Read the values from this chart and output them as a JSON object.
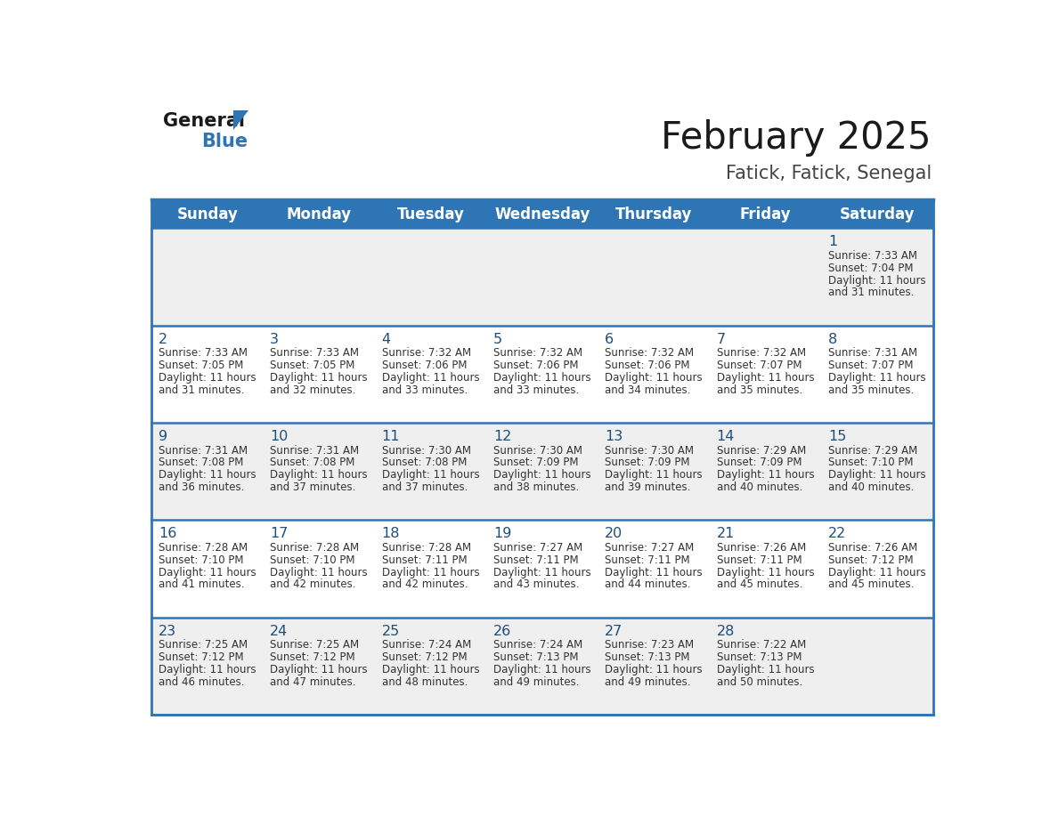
{
  "title": "February 2025",
  "subtitle": "Fatick, Fatick, Senegal",
  "header_bg_color": "#2E75B6",
  "header_text_color": "#FFFFFF",
  "day_names": [
    "Sunday",
    "Monday",
    "Tuesday",
    "Wednesday",
    "Thursday",
    "Friday",
    "Saturday"
  ],
  "cell_bg_color": "#EFEFEF",
  "cell_bg_color2": "#FFFFFF",
  "title_color": "#1A1A1A",
  "subtitle_color": "#444444",
  "day_num_color": "#1F4E79",
  "cell_text_color": "#333333",
  "border_color": "#2E75B6",
  "logo_text_color": "#1A1A1A",
  "logo_blue_color": "#2E75B6",
  "calendar": [
    [
      null,
      null,
      null,
      null,
      null,
      null,
      {
        "day": 1,
        "sunrise": "7:33 AM",
        "sunset": "7:04 PM",
        "daylight_h": "11 hours",
        "daylight_m": "and 31 minutes."
      }
    ],
    [
      {
        "day": 2,
        "sunrise": "7:33 AM",
        "sunset": "7:05 PM",
        "daylight_h": "11 hours",
        "daylight_m": "and 31 minutes."
      },
      {
        "day": 3,
        "sunrise": "7:33 AM",
        "sunset": "7:05 PM",
        "daylight_h": "11 hours",
        "daylight_m": "and 32 minutes."
      },
      {
        "day": 4,
        "sunrise": "7:32 AM",
        "sunset": "7:06 PM",
        "daylight_h": "11 hours",
        "daylight_m": "and 33 minutes."
      },
      {
        "day": 5,
        "sunrise": "7:32 AM",
        "sunset": "7:06 PM",
        "daylight_h": "11 hours",
        "daylight_m": "and 33 minutes."
      },
      {
        "day": 6,
        "sunrise": "7:32 AM",
        "sunset": "7:06 PM",
        "daylight_h": "11 hours",
        "daylight_m": "and 34 minutes."
      },
      {
        "day": 7,
        "sunrise": "7:32 AM",
        "sunset": "7:07 PM",
        "daylight_h": "11 hours",
        "daylight_m": "and 35 minutes."
      },
      {
        "day": 8,
        "sunrise": "7:31 AM",
        "sunset": "7:07 PM",
        "daylight_h": "11 hours",
        "daylight_m": "and 35 minutes."
      }
    ],
    [
      {
        "day": 9,
        "sunrise": "7:31 AM",
        "sunset": "7:08 PM",
        "daylight_h": "11 hours",
        "daylight_m": "and 36 minutes."
      },
      {
        "day": 10,
        "sunrise": "7:31 AM",
        "sunset": "7:08 PM",
        "daylight_h": "11 hours",
        "daylight_m": "and 37 minutes."
      },
      {
        "day": 11,
        "sunrise": "7:30 AM",
        "sunset": "7:08 PM",
        "daylight_h": "11 hours",
        "daylight_m": "and 37 minutes."
      },
      {
        "day": 12,
        "sunrise": "7:30 AM",
        "sunset": "7:09 PM",
        "daylight_h": "11 hours",
        "daylight_m": "and 38 minutes."
      },
      {
        "day": 13,
        "sunrise": "7:30 AM",
        "sunset": "7:09 PM",
        "daylight_h": "11 hours",
        "daylight_m": "and 39 minutes."
      },
      {
        "day": 14,
        "sunrise": "7:29 AM",
        "sunset": "7:09 PM",
        "daylight_h": "11 hours",
        "daylight_m": "and 40 minutes."
      },
      {
        "day": 15,
        "sunrise": "7:29 AM",
        "sunset": "7:10 PM",
        "daylight_h": "11 hours",
        "daylight_m": "and 40 minutes."
      }
    ],
    [
      {
        "day": 16,
        "sunrise": "7:28 AM",
        "sunset": "7:10 PM",
        "daylight_h": "11 hours",
        "daylight_m": "and 41 minutes."
      },
      {
        "day": 17,
        "sunrise": "7:28 AM",
        "sunset": "7:10 PM",
        "daylight_h": "11 hours",
        "daylight_m": "and 42 minutes."
      },
      {
        "day": 18,
        "sunrise": "7:28 AM",
        "sunset": "7:11 PM",
        "daylight_h": "11 hours",
        "daylight_m": "and 42 minutes."
      },
      {
        "day": 19,
        "sunrise": "7:27 AM",
        "sunset": "7:11 PM",
        "daylight_h": "11 hours",
        "daylight_m": "and 43 minutes."
      },
      {
        "day": 20,
        "sunrise": "7:27 AM",
        "sunset": "7:11 PM",
        "daylight_h": "11 hours",
        "daylight_m": "and 44 minutes."
      },
      {
        "day": 21,
        "sunrise": "7:26 AM",
        "sunset": "7:11 PM",
        "daylight_h": "11 hours",
        "daylight_m": "and 45 minutes."
      },
      {
        "day": 22,
        "sunrise": "7:26 AM",
        "sunset": "7:12 PM",
        "daylight_h": "11 hours",
        "daylight_m": "and 45 minutes."
      }
    ],
    [
      {
        "day": 23,
        "sunrise": "7:25 AM",
        "sunset": "7:12 PM",
        "daylight_h": "11 hours",
        "daylight_m": "and 46 minutes."
      },
      {
        "day": 24,
        "sunrise": "7:25 AM",
        "sunset": "7:12 PM",
        "daylight_h": "11 hours",
        "daylight_m": "and 47 minutes."
      },
      {
        "day": 25,
        "sunrise": "7:24 AM",
        "sunset": "7:12 PM",
        "daylight_h": "11 hours",
        "daylight_m": "and 48 minutes."
      },
      {
        "day": 26,
        "sunrise": "7:24 AM",
        "sunset": "7:13 PM",
        "daylight_h": "11 hours",
        "daylight_m": "and 49 minutes."
      },
      {
        "day": 27,
        "sunrise": "7:23 AM",
        "sunset": "7:13 PM",
        "daylight_h": "11 hours",
        "daylight_m": "and 49 minutes."
      },
      {
        "day": 28,
        "sunrise": "7:22 AM",
        "sunset": "7:13 PM",
        "daylight_h": "11 hours",
        "daylight_m": "and 50 minutes."
      },
      null
    ]
  ]
}
